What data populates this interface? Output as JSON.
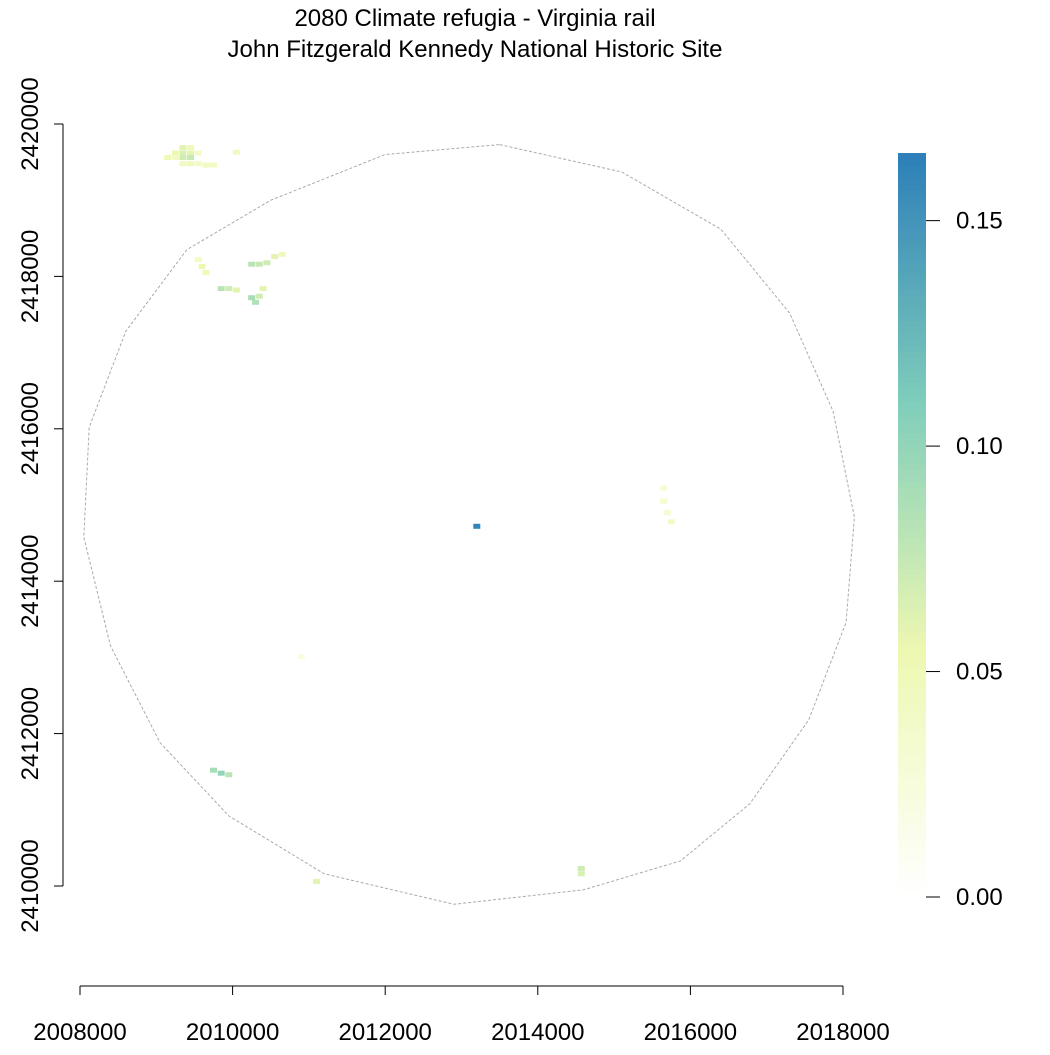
{
  "chart_data": {
    "type": "heatmap",
    "title": "2080 Climate refugia - Virginia rail",
    "subtitle": "John Fitzgerald Kennedy National Historic Site",
    "xlabel": "",
    "ylabel": "",
    "xlim": [
      2008000,
      2018000
    ],
    "ylim": [
      2409200,
      2420600
    ],
    "x_ticks": [
      2008000,
      2010000,
      2012000,
      2014000,
      2016000,
      2018000
    ],
    "x_tick_labels": [
      "2008000",
      "2010000",
      "2012000",
      "2014000",
      "2016000",
      "2018000"
    ],
    "y_ticks": [
      2410000,
      2412000,
      2414000,
      2416000,
      2418000,
      2420000
    ],
    "y_tick_labels": [
      "2410000",
      "2412000",
      "2414000",
      "2416000",
      "2418000",
      "2420000"
    ],
    "colorbar": {
      "range": [
        0,
        0.165
      ],
      "ticks": [
        0.0,
        0.05,
        0.1,
        0.15
      ],
      "tick_labels": [
        "0.00",
        "0.05",
        "0.10",
        "0.15"
      ],
      "colors": [
        "#ffffff",
        "#edf8b1",
        "#7fcdbb",
        "#2c7fb8"
      ]
    },
    "boundary": {
      "style": "dashed",
      "color": "#aaaaaa",
      "points": [
        [
          2013500,
          2419730
        ],
        [
          2015100,
          2419370
        ],
        [
          2016400,
          2418620
        ],
        [
          2017300,
          2417520
        ],
        [
          2017870,
          2416230
        ],
        [
          2018150,
          2414840
        ],
        [
          2018040,
          2413460
        ],
        [
          2017550,
          2412180
        ],
        [
          2016780,
          2411080
        ],
        [
          2015870,
          2410330
        ],
        [
          2014600,
          2409950
        ],
        [
          2012900,
          2409760
        ],
        [
          2011200,
          2410160
        ],
        [
          2009950,
          2410920
        ],
        [
          2009050,
          2411880
        ],
        [
          2008400,
          2413150
        ],
        [
          2008050,
          2414580
        ],
        [
          2008120,
          2416020
        ],
        [
          2008600,
          2417280
        ],
        [
          2009400,
          2418350
        ],
        [
          2010500,
          2419000
        ],
        [
          2012000,
          2419600
        ]
      ]
    },
    "cells": [
      {
        "x": 2009350,
        "y": 2419690,
        "v": 0.06
      },
      {
        "x": 2009450,
        "y": 2419690,
        "v": 0.05
      },
      {
        "x": 2009250,
        "y": 2419620,
        "v": 0.055
      },
      {
        "x": 2009350,
        "y": 2419620,
        "v": 0.065
      },
      {
        "x": 2009450,
        "y": 2419620,
        "v": 0.06
      },
      {
        "x": 2009550,
        "y": 2419620,
        "v": 0.04
      },
      {
        "x": 2009150,
        "y": 2419560,
        "v": 0.05
      },
      {
        "x": 2009250,
        "y": 2419560,
        "v": 0.04
      },
      {
        "x": 2009350,
        "y": 2419560,
        "v": 0.07
      },
      {
        "x": 2009450,
        "y": 2419560,
        "v": 0.075
      },
      {
        "x": 2009350,
        "y": 2419480,
        "v": 0.045
      },
      {
        "x": 2009450,
        "y": 2419480,
        "v": 0.05
      },
      {
        "x": 2009550,
        "y": 2419480,
        "v": 0.04
      },
      {
        "x": 2009650,
        "y": 2419460,
        "v": 0.045
      },
      {
        "x": 2009750,
        "y": 2419460,
        "v": 0.04
      },
      {
        "x": 2010050,
        "y": 2419630,
        "v": 0.045
      },
      {
        "x": 2009550,
        "y": 2418220,
        "v": 0.04
      },
      {
        "x": 2009600,
        "y": 2418130,
        "v": 0.055
      },
      {
        "x": 2009650,
        "y": 2418050,
        "v": 0.05
      },
      {
        "x": 2010250,
        "y": 2418160,
        "v": 0.08
      },
      {
        "x": 2010350,
        "y": 2418160,
        "v": 0.075
      },
      {
        "x": 2010450,
        "y": 2418180,
        "v": 0.07
      },
      {
        "x": 2010550,
        "y": 2418260,
        "v": 0.06
      },
      {
        "x": 2010650,
        "y": 2418290,
        "v": 0.05
      },
      {
        "x": 2009850,
        "y": 2417840,
        "v": 0.08
      },
      {
        "x": 2009950,
        "y": 2417840,
        "v": 0.07
      },
      {
        "x": 2010050,
        "y": 2417820,
        "v": 0.06
      },
      {
        "x": 2010250,
        "y": 2417720,
        "v": 0.09
      },
      {
        "x": 2010300,
        "y": 2417660,
        "v": 0.085
      },
      {
        "x": 2010350,
        "y": 2417740,
        "v": 0.07
      },
      {
        "x": 2010400,
        "y": 2417840,
        "v": 0.06
      },
      {
        "x": 2015650,
        "y": 2415220,
        "v": 0.03
      },
      {
        "x": 2015650,
        "y": 2415050,
        "v": 0.035
      },
      {
        "x": 2015700,
        "y": 2414900,
        "v": 0.03
      },
      {
        "x": 2015750,
        "y": 2414780,
        "v": 0.04
      },
      {
        "x": 2013200,
        "y": 2414720,
        "v": 0.16
      },
      {
        "x": 2010900,
        "y": 2413010,
        "v": 0.02
      },
      {
        "x": 2009750,
        "y": 2411520,
        "v": 0.09
      },
      {
        "x": 2009850,
        "y": 2411480,
        "v": 0.1
      },
      {
        "x": 2009950,
        "y": 2411460,
        "v": 0.08
      },
      {
        "x": 2014570,
        "y": 2410230,
        "v": 0.07
      },
      {
        "x": 2014570,
        "y": 2410160,
        "v": 0.065
      },
      {
        "x": 2011100,
        "y": 2410060,
        "v": 0.06
      }
    ]
  }
}
